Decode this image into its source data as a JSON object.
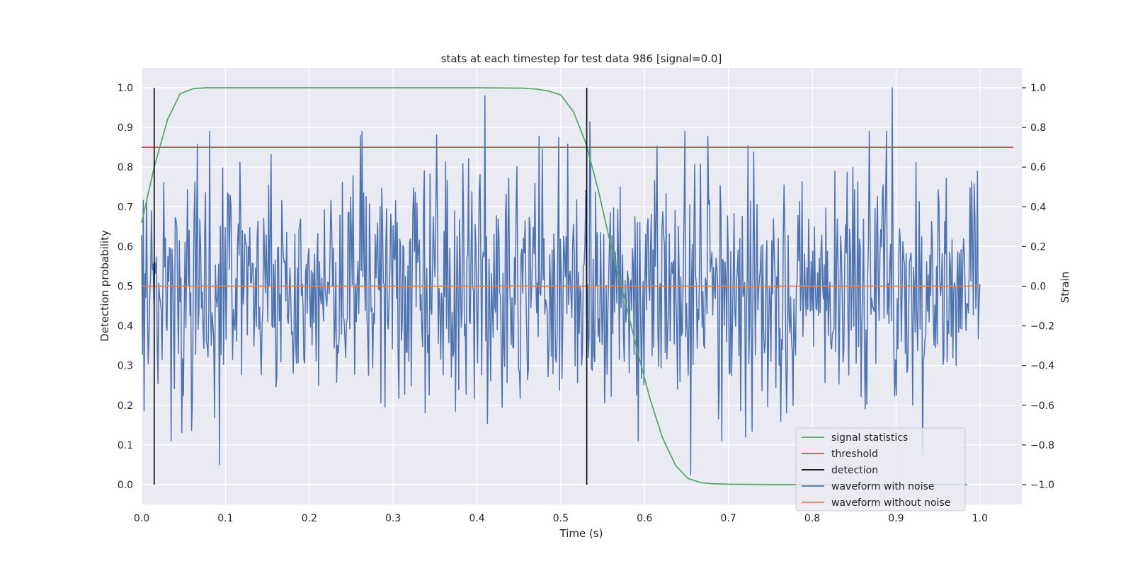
{
  "chart_data": {
    "type": "line",
    "title": "stats at each timestep for test data 986 [signal=0.0]",
    "xlabel": "Time (s)",
    "ylabel": "Detection probability",
    "y2label": "Strain",
    "xlim": [
      0.0,
      1.05
    ],
    "ylim": [
      -0.05,
      1.05
    ],
    "y2lim": [
      -1.1,
      1.1
    ],
    "xticks": [
      0.0,
      0.1,
      0.2,
      0.3,
      0.4,
      0.5,
      0.6,
      0.7,
      0.8,
      0.9,
      1.0
    ],
    "xtick_labels": [
      "0.0",
      "0.1",
      "0.2",
      "0.3",
      "0.4",
      "0.5",
      "0.6",
      "0.7",
      "0.8",
      "0.9",
      "1.0"
    ],
    "yticks": [
      0.0,
      0.1,
      0.2,
      0.3,
      0.4,
      0.5,
      0.6,
      0.7,
      0.8,
      0.9,
      1.0
    ],
    "ytick_labels": [
      "0.0",
      "0.1",
      "0.2",
      "0.3",
      "0.4",
      "0.5",
      "0.6",
      "0.7",
      "0.8",
      "0.9",
      "1.0"
    ],
    "y2ticks": [
      -1.0,
      -0.8,
      -0.6,
      -0.4,
      -0.2,
      0.0,
      0.2,
      0.4,
      0.6,
      0.8,
      1.0
    ],
    "y2tick_labels": [
      "−1.0",
      "−0.8",
      "−0.6",
      "−0.4",
      "−0.2",
      "0.0",
      "0.2",
      "0.4",
      "0.6",
      "0.8",
      "1.0"
    ],
    "grid": true,
    "legend_position": "bottom-right",
    "series": [
      {
        "name": "signal statistics",
        "axis": "left",
        "color": "#55a868",
        "x": [
          0.0,
          0.015,
          0.031,
          0.046,
          0.062,
          0.077,
          0.1,
          0.2,
          0.3,
          0.4,
          0.455,
          0.47,
          0.485,
          0.5,
          0.515,
          0.53,
          0.545,
          0.56,
          0.576,
          0.591,
          0.606,
          0.621,
          0.637,
          0.652,
          0.667,
          0.682,
          0.7,
          0.75,
          0.8,
          0.85,
          0.9,
          0.95,
          0.985
        ],
        "values": [
          0.66,
          0.8,
          0.92,
          0.985,
          0.998,
          1.0,
          1.0,
          1.0,
          1.0,
          1.0,
          0.999,
          0.997,
          0.992,
          0.982,
          0.94,
          0.86,
          0.74,
          0.6,
          0.47,
          0.34,
          0.22,
          0.12,
          0.048,
          0.015,
          0.005,
          0.002,
          0.001,
          0.0,
          0.0,
          0.0,
          0.0,
          0.0,
          0.0
        ]
      },
      {
        "name": "threshold",
        "axis": "left",
        "color": "#c44e52",
        "x": [
          0.0,
          1.04
        ],
        "values": [
          0.85,
          0.85
        ]
      },
      {
        "name": "detection",
        "axis": "left",
        "color": "#000000",
        "x": [
          0.015,
          0.531
        ],
        "values": [
          1.0,
          1.0
        ],
        "style": "vertical lines from 0 to 1"
      },
      {
        "name": "waveform with noise",
        "axis": "right",
        "color": "#4c72b0",
        "x_range": [
          0.0,
          1.0
        ],
        "n_points": 1024,
        "amplitude_range": [
          -1.0,
          1.0
        ],
        "notable_points": [
          {
            "x": 0.093,
            "value": -0.9
          },
          {
            "x": 0.41,
            "value": 0.96
          },
          {
            "x": 0.655,
            "value": -0.95
          },
          {
            "x": 0.895,
            "value": 1.0
          },
          {
            "x": 0.932,
            "value": -0.85
          },
          {
            "x": 0.263,
            "value": 0.78
          },
          {
            "x": 0.535,
            "value": 0.83
          }
        ]
      },
      {
        "name": "waveform without noise",
        "axis": "right",
        "color": "#dd8452",
        "x": [
          0.0,
          1.0
        ],
        "values": [
          0.0,
          0.0
        ]
      }
    ]
  }
}
